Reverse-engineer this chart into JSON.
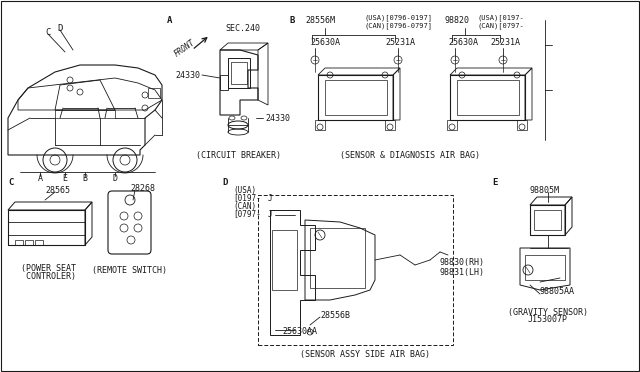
{
  "bg_color": "#ffffff",
  "line_color": "#1a1a1a",
  "sections": {
    "car_label_C": "C",
    "car_label_D": "D",
    "car_bottom_labels": [
      "A",
      "E",
      "B",
      "D"
    ],
    "section_A_label": "A",
    "sec240": "SEC.240",
    "front": "FRONT",
    "cb_parts": [
      "24330",
      "24330"
    ],
    "cb_caption": "(CIRCUIT BREAKER)",
    "section_B_label": "B",
    "left_sensor_part": "28556M",
    "left_sensor_note1": "(USA)[0796-0197]",
    "left_sensor_note2": "(CAN)[0796-0797]",
    "left_sensor_bolt1": "25630A",
    "left_sensor_bolt2": "25231A",
    "right_sensor_part": "98820",
    "right_sensor_note1": "(USA)[0197-",
    "right_sensor_note2": "(CAN)[0797-",
    "right_sensor_bolt1": "25630A",
    "right_sensor_bolt2": "25231A",
    "sensor_caption": "(SENSOR & DIAGNOSIS AIR BAG)",
    "section_C_label": "C",
    "power_seat_part": "28565",
    "power_seat_caption1": "(POWER SEAT",
    "power_seat_caption2": " CONTROLER)",
    "remote_part": "28268",
    "remote_caption": "(REMOTE SWITCH)",
    "section_D_label": "D",
    "sensor_assy_note1": "(USA)",
    "sensor_assy_note2": "[0197-",
    "sensor_assy_note3": "J",
    "sensor_assy_note4": "(CAN)",
    "sensor_assy_note5": "[0797-",
    "sensor_assy_note6": "J",
    "sensor_assy_p1": "28556B",
    "sensor_assy_p2": "25630AA",
    "sensor_assy_rh": "98830(RH)",
    "sensor_assy_lh": "98831(LH)",
    "sensor_assy_caption": "(SENSOR ASSY SIDE AIR BAG)",
    "section_E_label": "E",
    "gravity_p1": "98805M",
    "gravity_p2": "98805AA",
    "gravity_caption": "(GRAVITY SENSOR)",
    "gravity_sub": "J153007P"
  },
  "fs": 5.5,
  "fn": 6.5
}
